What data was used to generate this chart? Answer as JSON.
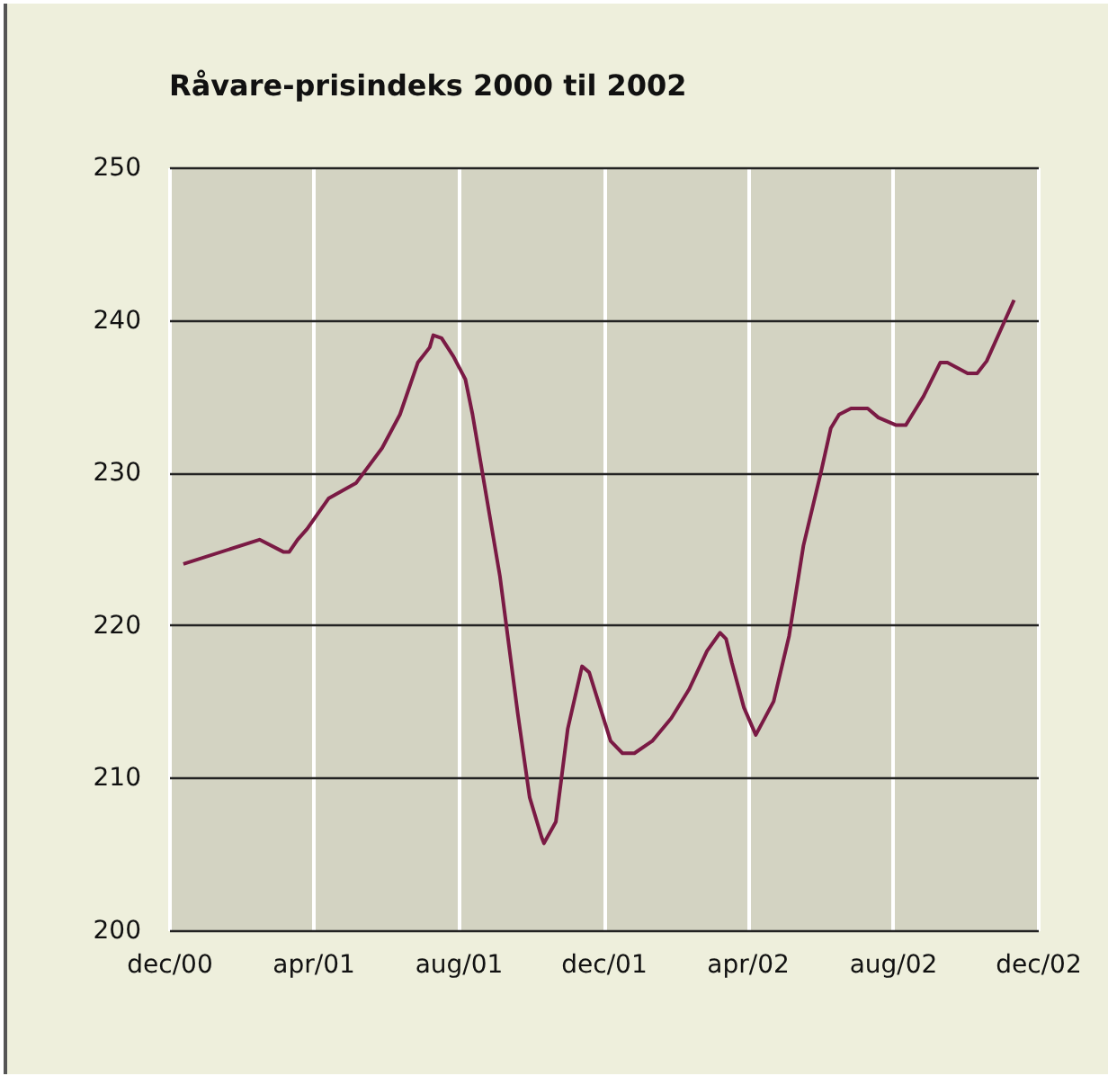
{
  "chart_data": {
    "type": "line",
    "title": "Råvare-prisindeks 2000 til 2002",
    "x": [
      "2000-12-13",
      "2001-02-15",
      "2001-03-07",
      "2001-03-12",
      "2001-03-19",
      "2001-03-27",
      "2001-04-14",
      "2001-05-07",
      "2001-05-29",
      "2001-06-13",
      "2001-06-28",
      "2001-07-08",
      "2001-07-11",
      "2001-07-18",
      "2001-07-28",
      "2001-08-07",
      "2001-08-13",
      "2001-09-05",
      "2001-09-20",
      "2001-09-30",
      "2001-10-10",
      "2001-10-12",
      "2001-10-22",
      "2001-11-01",
      "2001-11-13",
      "2001-11-19",
      "2001-12-07",
      "2001-12-17",
      "2001-12-27",
      "2002-01-11",
      "2002-01-27",
      "2002-02-11",
      "2002-02-26",
      "2002-03-09",
      "2002-03-14",
      "2002-03-19",
      "2002-03-29",
      "2002-04-08",
      "2002-04-23",
      "2002-05-06",
      "2002-05-18",
      "2002-06-02",
      "2002-06-10",
      "2002-06-17",
      "2002-06-27",
      "2002-07-11",
      "2002-07-20",
      "2002-08-04",
      "2002-08-12",
      "2002-08-27",
      "2002-09-10",
      "2002-09-16",
      "2002-10-03",
      "2002-10-11",
      "2002-10-19",
      "2002-11-11"
    ],
    "series": [
      {
        "color": "#7a1a44",
        "values": [
          224.0,
          225.6,
          224.8,
          224.8,
          225.6,
          226.3,
          228.3,
          229.3,
          231.6,
          233.8,
          237.2,
          238.2,
          239.0,
          238.8,
          237.6,
          236.1,
          233.8,
          223.2,
          214.2,
          208.7,
          206.1,
          205.7,
          207.1,
          213.2,
          217.3,
          216.9,
          212.4,
          211.6,
          211.6,
          212.4,
          213.9,
          215.8,
          218.3,
          219.5,
          219.1,
          217.5,
          214.6,
          212.8,
          215.0,
          219.3,
          225.2,
          230.1,
          232.9,
          233.8,
          234.2,
          234.2,
          233.6,
          233.1,
          233.1,
          235.0,
          237.2,
          237.2,
          236.5,
          236.5,
          237.3,
          241.3
        ]
      }
    ],
    "xlim": [
      "2000-12-01",
      "2002-12-01"
    ],
    "xticks": [
      {
        "value": "2000-12-01",
        "label": "dec/00"
      },
      {
        "value": "2001-04-01",
        "label": "apr/01"
      },
      {
        "value": "2001-08-01",
        "label": "aug/01"
      },
      {
        "value": "2001-12-01",
        "label": "dec/01"
      },
      {
        "value": "2002-04-01",
        "label": "apr/02"
      },
      {
        "value": "2002-08-01",
        "label": "aug/02"
      },
      {
        "value": "2002-12-01",
        "label": "dec/02"
      }
    ],
    "ylim": [
      200,
      250
    ],
    "yticks": [
      200,
      210,
      220,
      230,
      240,
      250
    ],
    "grid": true,
    "legend": false,
    "marker": "none",
    "line_style": "solid"
  }
}
